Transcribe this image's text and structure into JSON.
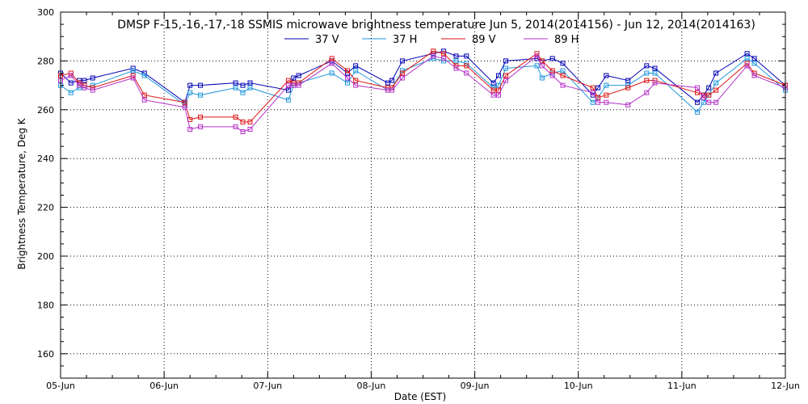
{
  "chart_data": {
    "type": "line",
    "title": "DMSP F-15,-16,-17,-18 SSMIS microwave brightness temperature Jun  5, 2014(2014156) - Jun 12, 2014(2014163)",
    "xlabel": "Date (EST)",
    "ylabel": "Brightness Temperature, Deg K",
    "ylim": [
      150,
      300
    ],
    "yticks": [
      160,
      180,
      200,
      220,
      240,
      260,
      280,
      300
    ],
    "xlim": [
      0,
      7
    ],
    "xticks": [
      0,
      1,
      2,
      3,
      4,
      5,
      6,
      7
    ],
    "xtick_labels": [
      "05-Jun",
      "06-Jun",
      "07-Jun",
      "08-Jun",
      "09-Jun",
      "10-Jun",
      "11-Jun",
      "12-Jun"
    ],
    "grid": true,
    "legend_position": "top-center",
    "series": [
      {
        "name": "37 V",
        "color": "#0000b4",
        "x": [
          0.0,
          0.1,
          0.18,
          0.23,
          0.31,
          0.7,
          0.81,
          1.2,
          1.25,
          1.35,
          1.69,
          1.76,
          1.83,
          2.2,
          2.25,
          2.3,
          2.62,
          2.77,
          2.85,
          3.16,
          3.2,
          3.3,
          3.6,
          3.7,
          3.82,
          3.92,
          4.18,
          4.23,
          4.3,
          4.6,
          4.65,
          4.75,
          4.85,
          5.14,
          5.19,
          5.27,
          5.48,
          5.66,
          5.74,
          6.15,
          6.21,
          6.26,
          6.33,
          6.63,
          6.7,
          7.0
        ],
        "y": [
          275,
          271,
          272,
          272,
          273,
          277,
          275,
          263,
          270,
          270,
          271,
          270,
          271,
          268,
          273,
          274,
          280,
          275,
          278,
          271,
          272,
          280,
          283,
          284,
          282,
          282,
          271,
          274,
          280,
          281,
          280,
          281,
          279,
          266,
          269,
          274,
          272,
          278,
          277,
          263,
          266,
          269,
          275,
          283,
          281,
          270
        ]
      },
      {
        "name": "37 H",
        "color": "#1e96dc",
        "x": [
          0.0,
          0.1,
          0.18,
          0.23,
          0.31,
          0.7,
          0.81,
          1.2,
          1.25,
          1.35,
          1.69,
          1.76,
          1.83,
          2.2,
          2.25,
          2.3,
          2.62,
          2.77,
          2.85,
          3.16,
          3.2,
          3.3,
          3.6,
          3.7,
          3.82,
          3.92,
          4.18,
          4.23,
          4.3,
          4.6,
          4.65,
          4.75,
          4.85,
          5.14,
          5.19,
          5.27,
          5.48,
          5.66,
          5.74,
          6.15,
          6.21,
          6.26,
          6.33,
          6.63,
          6.7,
          7.0
        ],
        "y": [
          270,
          267,
          269,
          269,
          270,
          276,
          274,
          262,
          267,
          266,
          269,
          267,
          269,
          264,
          270,
          271,
          275,
          271,
          276,
          268,
          269,
          276,
          281,
          280,
          280,
          279,
          269,
          270,
          277,
          278,
          273,
          275,
          276,
          263,
          265,
          270,
          270,
          275,
          275,
          259,
          263,
          266,
          271,
          281,
          279,
          268
        ]
      },
      {
        "name": "89 V",
        "color": "#dc1414",
        "x": [
          0.0,
          0.1,
          0.18,
          0.23,
          0.31,
          0.7,
          0.81,
          1.2,
          1.25,
          1.35,
          1.69,
          1.76,
          1.83,
          2.2,
          2.25,
          2.3,
          2.62,
          2.77,
          2.85,
          3.16,
          3.2,
          3.3,
          3.6,
          3.7,
          3.82,
          3.92,
          4.18,
          4.23,
          4.3,
          4.6,
          4.65,
          4.75,
          4.85,
          5.14,
          5.19,
          5.27,
          5.48,
          5.66,
          5.74,
          6.15,
          6.21,
          6.26,
          6.33,
          6.63,
          6.7,
          7.0
        ],
        "y": [
          274,
          275,
          271,
          270,
          269,
          274,
          266,
          263,
          256,
          257,
          257,
          255,
          255,
          272,
          271,
          271,
          281,
          276,
          272,
          269,
          269,
          275,
          284,
          283,
          278,
          278,
          268,
          268,
          274,
          283,
          280,
          276,
          274,
          269,
          265,
          266,
          269,
          272,
          272,
          267,
          266,
          266,
          268,
          279,
          275,
          270
        ]
      },
      {
        "name": "89 H",
        "color": "#b432c8",
        "x": [
          0.0,
          0.1,
          0.18,
          0.23,
          0.31,
          0.7,
          0.81,
          1.2,
          1.25,
          1.35,
          1.69,
          1.76,
          1.83,
          2.2,
          2.25,
          2.3,
          2.62,
          2.77,
          2.85,
          3.16,
          3.2,
          3.3,
          3.6,
          3.7,
          3.82,
          3.92,
          4.18,
          4.23,
          4.3,
          4.6,
          4.65,
          4.75,
          4.85,
          5.14,
          5.19,
          5.27,
          5.48,
          5.66,
          5.74,
          6.15,
          6.21,
          6.26,
          6.33,
          6.63,
          6.7,
          7.0
        ],
        "y": [
          272,
          274,
          270,
          269,
          268,
          273,
          264,
          261,
          252,
          253,
          253,
          251,
          252,
          270,
          270,
          270,
          279,
          273,
          270,
          268,
          268,
          273,
          282,
          281,
          277,
          275,
          266,
          266,
          272,
          282,
          278,
          274,
          270,
          267,
          263,
          263,
          262,
          267,
          271,
          269,
          265,
          263,
          263,
          278,
          274,
          269
        ]
      }
    ]
  }
}
